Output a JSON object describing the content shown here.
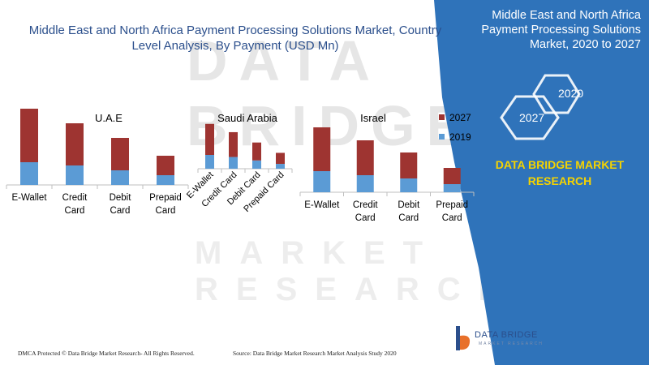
{
  "title": "Middle East and North Africa Payment Processing Solutions Market, Country Level Analysis, By Payment (USD Mn)",
  "side_panel": {
    "title": "Middle East and North Africa Payment Processing Solutions Market, 2020 to 2027",
    "hex_labels": [
      "2020",
      "2027"
    ],
    "brand": "DATA BRIDGE MARKET RESEARCH",
    "colors": {
      "panel": "#2f73ba",
      "brand_text": "#f5d300"
    }
  },
  "watermark": {
    "line1": "DATA BRIDGE",
    "line2": "MARKET RESEARCH"
  },
  "footer": {
    "left": "DMCA Protected © Data Bridge Market Research- All Rights Reserved.",
    "source": "Source: Data Bridge Market Research Market Analysis Study 2020"
  },
  "logo": {
    "name": "DATA BRIDGE",
    "sub": "MARKET RESEARCH",
    "icon": "data-bridge-logo-icon"
  },
  "legend": {
    "entries": [
      "2027",
      "2019"
    ]
  },
  "colors": {
    "2027": "#9e3431",
    "2019": "#5b9bd5",
    "title": "#2b4f8c"
  },
  "chart_data": [
    {
      "type": "bar",
      "stacked": true,
      "title": "U.A.E",
      "categories": [
        "E-Wallet",
        "Credit Card",
        "Debit Card",
        "Prepaid Card"
      ],
      "series": [
        {
          "name": "2019",
          "values": [
            28,
            24,
            18,
            12
          ]
        },
        {
          "name": "2027",
          "values": [
            66,
            52,
            40,
            24
          ]
        }
      ],
      "ylim": [
        0,
        100
      ],
      "legend": "top-right"
    },
    {
      "type": "bar",
      "stacked": true,
      "title": "Saudi Arabia",
      "categories": [
        "E-Wallet",
        "Credit Card",
        "Debit Card",
        "Prepaid Card"
      ],
      "series": [
        {
          "name": "2019",
          "values": [
            20,
            17,
            12,
            7
          ]
        },
        {
          "name": "2027",
          "values": [
            45,
            36,
            26,
            16
          ]
        }
      ],
      "ylim": [
        0,
        100
      ]
    },
    {
      "type": "bar",
      "stacked": true,
      "title": "Israel",
      "categories": [
        "E-Wallet",
        "Credit Card",
        "Debit Card",
        "Prepaid Card"
      ],
      "series": [
        {
          "name": "2019",
          "values": [
            26,
            21,
            17,
            10
          ]
        },
        {
          "name": "2027",
          "values": [
            54,
            43,
            32,
            20
          ]
        }
      ],
      "ylim": [
        0,
        100
      ]
    }
  ]
}
